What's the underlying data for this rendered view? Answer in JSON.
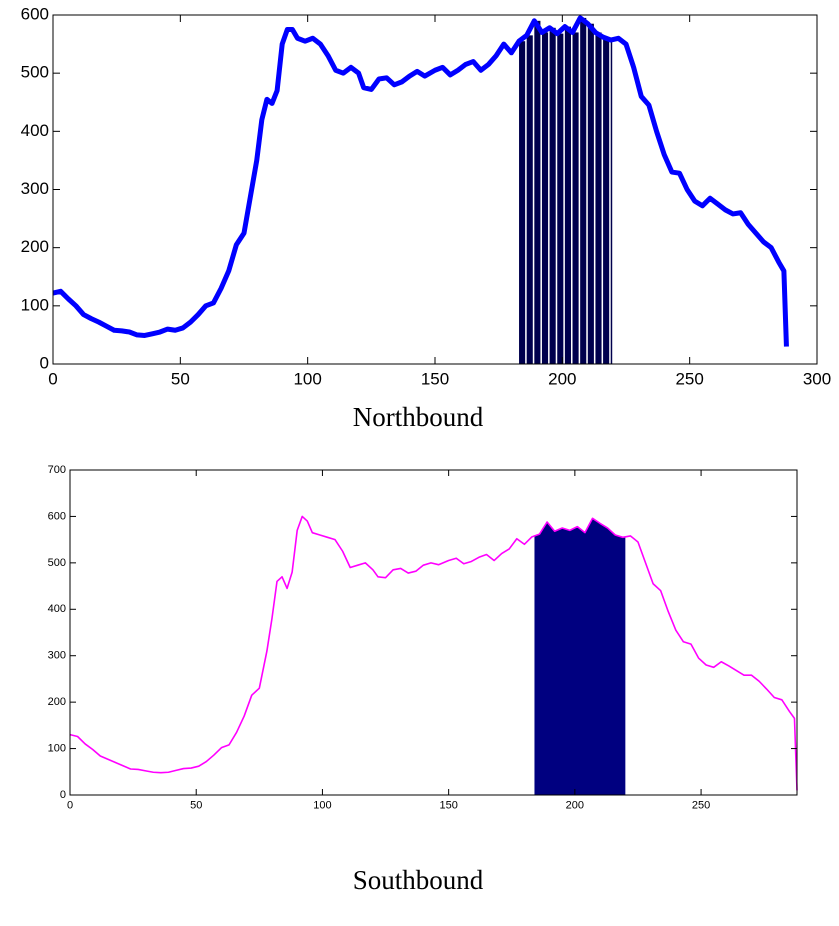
{
  "chart_data": [
    {
      "type": "line",
      "xlabel": "Northbound",
      "x": [
        0,
        3,
        6,
        9,
        12,
        15,
        18,
        21,
        24,
        27,
        30,
        33,
        36,
        39,
        42,
        45,
        48,
        51,
        54,
        57,
        60,
        63,
        66,
        69,
        72,
        75,
        78,
        80,
        82,
        84,
        86,
        88,
        90,
        92,
        94,
        96,
        99,
        102,
        105,
        108,
        111,
        114,
        117,
        120,
        122,
        125,
        128,
        131,
        134,
        137,
        140,
        143,
        146,
        150,
        153,
        156,
        159,
        162,
        165,
        168,
        171,
        174,
        177,
        180,
        183,
        186,
        189,
        192,
        195,
        198,
        201,
        204,
        207,
        210,
        213,
        216,
        219,
        222,
        225,
        228,
        231,
        234,
        237,
        240,
        243,
        246,
        249,
        252,
        255,
        258,
        261,
        264,
        267,
        270,
        273,
        276,
        279,
        282,
        285,
        287,
        288
      ],
      "series": [
        {
          "color": "#0000ff",
          "values": [
            122,
            125,
            112,
            100,
            85,
            78,
            72,
            65,
            58,
            57,
            55,
            50,
            49,
            52,
            55,
            60,
            58,
            62,
            72,
            85,
            100,
            105,
            130,
            160,
            205,
            225,
            300,
            350,
            420,
            455,
            448,
            470,
            550,
            575,
            575,
            560,
            555,
            560,
            550,
            530,
            505,
            500,
            510,
            500,
            475,
            472,
            490,
            492,
            480,
            485,
            495,
            503,
            495,
            505,
            510,
            497,
            505,
            515,
            520,
            505,
            515,
            530,
            550,
            535,
            555,
            565,
            590,
            570,
            578,
            568,
            580,
            570,
            595,
            585,
            570,
            562,
            557,
            560,
            550,
            510,
            460,
            445,
            400,
            360,
            330,
            328,
            300,
            280,
            272,
            285,
            275,
            265,
            258,
            260,
            240,
            225,
            210,
            200,
            175,
            160,
            30
          ]
        }
      ],
      "shade": {
        "xlim": [
          183,
          219
        ],
        "color": "#00004d",
        "style": "bars"
      },
      "xlim": [
        0,
        300
      ],
      "ylim": [
        0,
        600
      ],
      "xticks": [
        0,
        50,
        100,
        150,
        200,
        250,
        300
      ],
      "yticks": [
        0,
        100,
        200,
        300,
        400,
        500,
        600
      ]
    },
    {
      "type": "line",
      "xlabel": "Southbound",
      "x": [
        0,
        3,
        6,
        9,
        12,
        15,
        18,
        21,
        24,
        27,
        30,
        33,
        36,
        39,
        42,
        45,
        48,
        51,
        54,
        57,
        60,
        63,
        66,
        69,
        72,
        75,
        78,
        80,
        82,
        84,
        86,
        88,
        90,
        92,
        94,
        96,
        99,
        102,
        105,
        108,
        111,
        114,
        117,
        120,
        122,
        125,
        128,
        131,
        134,
        137,
        140,
        143,
        146,
        150,
        153,
        156,
        159,
        162,
        165,
        168,
        171,
        174,
        177,
        180,
        183,
        186,
        189,
        192,
        195,
        198,
        201,
        204,
        207,
        210,
        213,
        216,
        219,
        222,
        225,
        228,
        231,
        234,
        237,
        240,
        243,
        246,
        249,
        252,
        255,
        258,
        261,
        264,
        267,
        270,
        273,
        276,
        279,
        282,
        285,
        287,
        288
      ],
      "series": [
        {
          "color": "#ff00ff",
          "values": [
            130,
            126,
            110,
            98,
            84,
            77,
            70,
            63,
            56,
            55,
            52,
            49,
            48,
            49,
            53,
            57,
            58,
            62,
            72,
            86,
            102,
            108,
            135,
            170,
            215,
            230,
            310,
            380,
            460,
            470,
            445,
            480,
            570,
            600,
            590,
            565,
            560,
            555,
            550,
            525,
            490,
            495,
            500,
            485,
            470,
            468,
            485,
            488,
            478,
            482,
            495,
            500,
            496,
            505,
            510,
            498,
            503,
            512,
            518,
            505,
            520,
            530,
            552,
            540,
            556,
            562,
            588,
            568,
            575,
            570,
            578,
            565,
            596,
            585,
            575,
            560,
            555,
            558,
            545,
            500,
            455,
            440,
            395,
            355,
            330,
            325,
            295,
            280,
            275,
            287,
            278,
            268,
            258,
            258,
            245,
            228,
            210,
            205,
            180,
            165,
            10
          ]
        }
      ],
      "shade": {
        "xlim": [
          184,
          220
        ],
        "color": "#000080",
        "style": "fill"
      },
      "xlim": [
        0,
        288
      ],
      "ylim": [
        0,
        700
      ],
      "xticks": [
        0,
        50,
        100,
        150,
        200,
        250
      ],
      "yticks": [
        0,
        100,
        200,
        300,
        400,
        500,
        600,
        700
      ]
    }
  ]
}
